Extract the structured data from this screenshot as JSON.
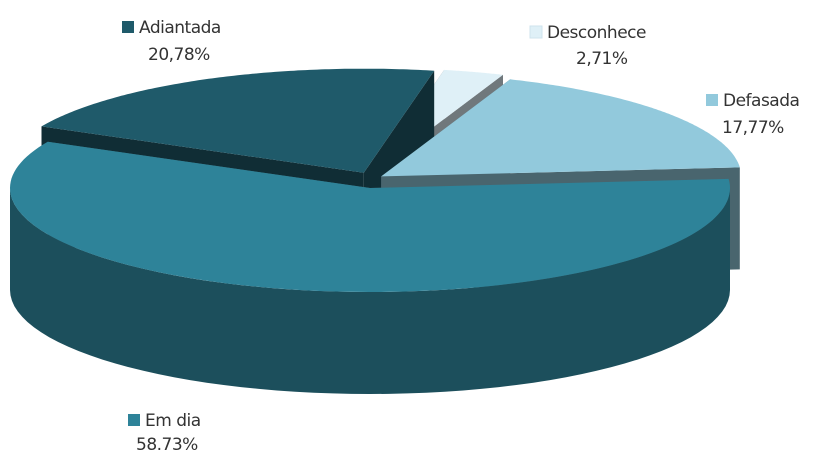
{
  "chart_data": {
    "type": "pie3d",
    "categories": [
      "Em dia",
      "Adiantada",
      "Desconhece",
      "Defasada"
    ],
    "values": [
      58.73,
      20.78,
      2.71,
      17.77
    ],
    "value_labels": [
      "58.73%",
      "20,78%",
      "2,71%",
      "17,77%"
    ],
    "colors": [
      "#2e8399",
      "#1f5a6a",
      "#dff0f7",
      "#92c9dc"
    ]
  }
}
